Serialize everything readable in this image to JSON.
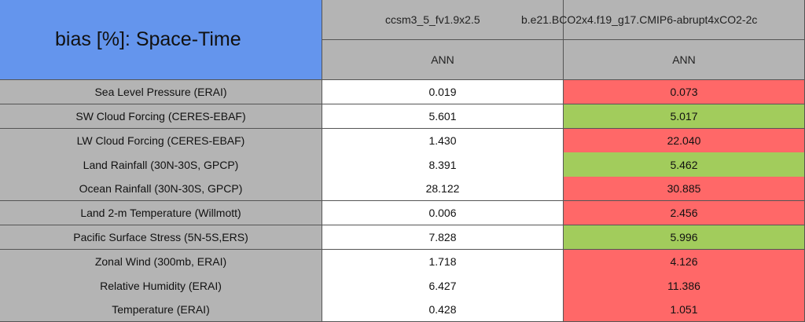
{
  "title": "bias [%]: Space-Time",
  "columns": [
    {
      "case": "ccsm3_5_fv1.9x2.5",
      "period": "ANN"
    },
    {
      "case": "b.e21.BCO2x4.f19_g17.CMIP6-abrupt4xCO2-2c",
      "period": "ANN"
    }
  ],
  "rows": [
    {
      "label": "Sea Level Pressure (ERAI)",
      "values": [
        "0.019",
        "0.073"
      ],
      "colors": [
        "#ffffff",
        "#ff6868"
      ]
    },
    {
      "label": "SW Cloud Forcing (CERES-EBAF)",
      "values": [
        "5.601",
        "5.017"
      ],
      "colors": [
        "#ffffff",
        "#a2cc5c"
      ]
    },
    {
      "label": "LW Cloud Forcing (CERES-EBAF)",
      "values": [
        "1.430",
        "22.040"
      ],
      "colors": [
        "#ffffff",
        "#ff6868"
      ]
    },
    {
      "label": "Land Rainfall (30N-30S, GPCP)",
      "values": [
        "8.391",
        "5.462"
      ],
      "colors": [
        "#ffffff",
        "#a2cc5c"
      ]
    },
    {
      "label": "Ocean Rainfall (30N-30S, GPCP)",
      "values": [
        "28.122",
        "30.885"
      ],
      "colors": [
        "#ffffff",
        "#ff6868"
      ]
    },
    {
      "label": "Land 2-m Temperature (Willmott)",
      "values": [
        "0.006",
        "2.456"
      ],
      "colors": [
        "#ffffff",
        "#ff6868"
      ]
    },
    {
      "label": "Pacific Surface Stress (5N-5S,ERS)",
      "values": [
        "7.828",
        "5.996"
      ],
      "colors": [
        "#ffffff",
        "#a2cc5c"
      ]
    },
    {
      "label": "Zonal Wind (300mb, ERAI)",
      "values": [
        "1.718",
        "4.126"
      ],
      "colors": [
        "#ffffff",
        "#ff6868"
      ]
    },
    {
      "label": "Relative Humidity (ERAI)",
      "values": [
        "6.427",
        "11.386"
      ],
      "colors": [
        "#ffffff",
        "#ff6868"
      ]
    },
    {
      "label": "Temperature (ERAI)",
      "values": [
        "0.428",
        "1.051"
      ],
      "colors": [
        "#ffffff",
        "#ff6868"
      ]
    }
  ]
}
